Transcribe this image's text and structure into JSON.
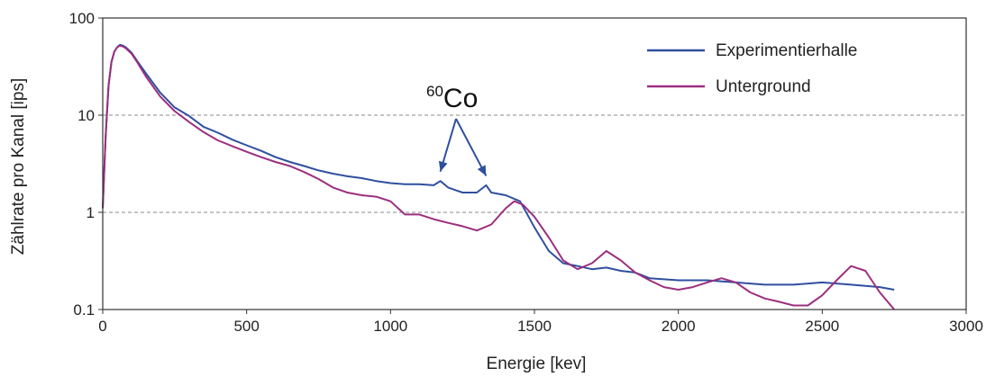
{
  "chart_data": {
    "type": "line",
    "title": "",
    "xlabel": "Energie [kev]",
    "ylabel": "Zählrate pro Kanal [ips]",
    "xlim": [
      0,
      3000
    ],
    "ylim": [
      0.1,
      100
    ],
    "yscale": "log",
    "xticks": [
      0,
      500,
      1000,
      1500,
      2000,
      2500,
      3000
    ],
    "xtick_labels": [
      "0",
      "500",
      "1000",
      "1500",
      "2000",
      "2500",
      "3000"
    ],
    "yticks": [
      0.1,
      1,
      10,
      100
    ],
    "ytick_labels": [
      "0.1",
      "1",
      "10",
      "100"
    ],
    "grid": "horizontal dashed at 1 and 10",
    "legend_position": "top-right",
    "series": [
      {
        "name": "Experimentierhalle",
        "color": "#2f4f9f",
        "x": [
          0,
          10,
          20,
          30,
          40,
          50,
          60,
          70,
          80,
          100,
          120,
          150,
          200,
          250,
          300,
          350,
          400,
          450,
          500,
          550,
          600,
          650,
          700,
          750,
          800,
          850,
          900,
          950,
          1000,
          1050,
          1100,
          1150,
          1173,
          1200,
          1250,
          1300,
          1332,
          1350,
          1400,
          1450,
          1500,
          1550,
          1600,
          1650,
          1700,
          1750,
          1800,
          1850,
          1900,
          2000,
          2100,
          2200,
          2300,
          2400,
          2500,
          2600,
          2700,
          2750
        ],
        "y": [
          1.1,
          6,
          20,
          35,
          45,
          50,
          53,
          52,
          50,
          44,
          36,
          27,
          17,
          12,
          9.8,
          7.6,
          6.6,
          5.6,
          4.9,
          4.3,
          3.7,
          3.3,
          3.0,
          2.7,
          2.5,
          2.35,
          2.25,
          2.1,
          2.0,
          1.95,
          1.95,
          1.9,
          2.1,
          1.8,
          1.6,
          1.6,
          1.9,
          1.6,
          1.5,
          1.3,
          0.7,
          0.4,
          0.3,
          0.28,
          0.26,
          0.27,
          0.25,
          0.24,
          0.21,
          0.2,
          0.2,
          0.19,
          0.18,
          0.18,
          0.19,
          0.18,
          0.17,
          0.16
        ]
      },
      {
        "name": "Unterground",
        "color": "#9b2f7f",
        "x": [
          0,
          10,
          20,
          30,
          40,
          50,
          60,
          70,
          80,
          100,
          120,
          150,
          200,
          250,
          300,
          350,
          400,
          450,
          500,
          550,
          600,
          650,
          700,
          750,
          800,
          850,
          900,
          950,
          1000,
          1050,
          1100,
          1150,
          1200,
          1250,
          1300,
          1350,
          1400,
          1430,
          1460,
          1500,
          1550,
          1600,
          1650,
          1700,
          1750,
          1800,
          1850,
          1900,
          1950,
          2000,
          2050,
          2100,
          2150,
          2200,
          2250,
          2300,
          2350,
          2400,
          2450,
          2500,
          2550,
          2600,
          2650,
          2700,
          2750
        ],
        "y": [
          1.1,
          6,
          20,
          35,
          45,
          50,
          52,
          51,
          49,
          43,
          35,
          25,
          15.5,
          11,
          8.5,
          6.7,
          5.5,
          4.8,
          4.2,
          3.7,
          3.3,
          3.0,
          2.6,
          2.2,
          1.8,
          1.6,
          1.5,
          1.45,
          1.3,
          0.95,
          0.95,
          0.85,
          0.78,
          0.72,
          0.65,
          0.75,
          1.1,
          1.3,
          1.2,
          0.9,
          0.55,
          0.32,
          0.26,
          0.3,
          0.4,
          0.32,
          0.24,
          0.2,
          0.17,
          0.16,
          0.17,
          0.19,
          0.21,
          0.19,
          0.15,
          0.13,
          0.12,
          0.11,
          0.11,
          0.14,
          0.2,
          0.28,
          0.25,
          0.15,
          0.1
        ]
      }
    ],
    "annotations": [
      {
        "text_sup": "60",
        "text": "Co",
        "points_to_x": [
          1173,
          1332
        ]
      }
    ]
  }
}
